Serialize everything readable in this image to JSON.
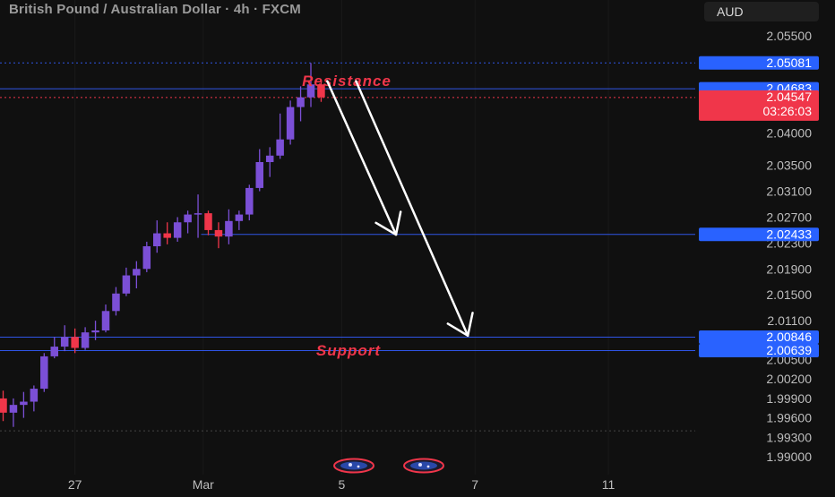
{
  "header": {
    "title": "British Pound / Australian Dollar · 4h · FXCM",
    "currency": "AUD"
  },
  "colors": {
    "background": "#101010",
    "bull": "#7b4fd6",
    "bear": "#f0364a",
    "level_line": "#2f55e6",
    "label_blue": "#2962ff",
    "label_red": "#f0364a",
    "annotation_red": "#f0364a",
    "arrow": "#ffffff",
    "axis_text": "#bdbdbd"
  },
  "chart_data": {
    "type": "candlestick",
    "symbol": "GBPAUD",
    "timeframe": "4h",
    "y_axis": {
      "ticks": [
        "2.05500",
        "2.04000",
        "2.03500",
        "2.03100",
        "2.02700",
        "2.02300",
        "2.01900",
        "2.01500",
        "2.01100",
        "2.00500",
        "2.00200",
        "1.99900",
        "1.99600",
        "1.99300",
        "1.99000"
      ],
      "range": [
        1.989,
        2.057
      ]
    },
    "x_axis": {
      "ticks": [
        {
          "label": "27",
          "bar": 7
        },
        {
          "label": "Mar",
          "bar": 19.5
        },
        {
          "label": "5",
          "bar": 33
        },
        {
          "label": "7",
          "bar": 46
        },
        {
          "label": "11",
          "bar": 59
        }
      ]
    },
    "candles": [
      {
        "o": 1.999,
        "h": 2.0002,
        "l": 1.9955,
        "c": 1.9968
      },
      {
        "o": 1.9968,
        "h": 1.999,
        "l": 1.9946,
        "c": 1.998
      },
      {
        "o": 1.998,
        "h": 2.0,
        "l": 1.996,
        "c": 1.9985
      },
      {
        "o": 1.9985,
        "h": 2.001,
        "l": 1.997,
        "c": 2.0005
      },
      {
        "o": 2.0005,
        "h": 2.006,
        "l": 2.0,
        "c": 2.0055
      },
      {
        "o": 2.0055,
        "h": 2.0085,
        "l": 2.0052,
        "c": 2.007
      },
      {
        "o": 2.007,
        "h": 2.0103,
        "l": 2.0063,
        "c": 2.0085
      },
      {
        "o": 2.0085,
        "h": 2.0098,
        "l": 2.006,
        "c": 2.0068
      },
      {
        "o": 2.0068,
        "h": 2.01,
        "l": 2.0065,
        "c": 2.0092
      },
      {
        "o": 2.0092,
        "h": 2.011,
        "l": 2.008,
        "c": 2.0095
      },
      {
        "o": 2.0095,
        "h": 2.0135,
        "l": 2.0092,
        "c": 2.0125
      },
      {
        "o": 2.0125,
        "h": 2.0162,
        "l": 2.0118,
        "c": 2.0152
      },
      {
        "o": 2.0152,
        "h": 2.0192,
        "l": 2.0148,
        "c": 2.018
      },
      {
        "o": 2.018,
        "h": 2.0202,
        "l": 2.016,
        "c": 2.019
      },
      {
        "o": 2.019,
        "h": 2.0232,
        "l": 2.0185,
        "c": 2.0225
      },
      {
        "o": 2.0225,
        "h": 2.0265,
        "l": 2.0215,
        "c": 2.0245
      },
      {
        "o": 2.0245,
        "h": 2.0262,
        "l": 2.0228,
        "c": 2.0238
      },
      {
        "o": 2.0238,
        "h": 2.027,
        "l": 2.0232,
        "c": 2.0262
      },
      {
        "o": 2.0262,
        "h": 2.028,
        "l": 2.0245,
        "c": 2.0274
      },
      {
        "o": 2.0274,
        "h": 2.0305,
        "l": 2.0238,
        "c": 2.0276
      },
      {
        "o": 2.0276,
        "h": 2.028,
        "l": 2.0242,
        "c": 2.025
      },
      {
        "o": 2.025,
        "h": 2.0262,
        "l": 2.0222,
        "c": 2.024
      },
      {
        "o": 2.024,
        "h": 2.0282,
        "l": 2.0228,
        "c": 2.0264
      },
      {
        "o": 2.0264,
        "h": 2.028,
        "l": 2.025,
        "c": 2.0274
      },
      {
        "o": 2.0274,
        "h": 2.032,
        "l": 2.0265,
        "c": 2.0315
      },
      {
        "o": 2.0315,
        "h": 2.0375,
        "l": 2.031,
        "c": 2.0355
      },
      {
        "o": 2.0355,
        "h": 2.0378,
        "l": 2.0332,
        "c": 2.0365
      },
      {
        "o": 2.0365,
        "h": 2.043,
        "l": 2.036,
        "c": 2.039
      },
      {
        "o": 2.039,
        "h": 2.045,
        "l": 2.0382,
        "c": 2.044
      },
      {
        "o": 2.044,
        "h": 2.0472,
        "l": 2.0418,
        "c": 2.0455
      },
      {
        "o": 2.0455,
        "h": 2.0508,
        "l": 2.044,
        "c": 2.0475
      },
      {
        "o": 2.0475,
        "h": 2.048,
        "l": 2.0448,
        "c": 2.0455
      }
    ],
    "levels": [
      {
        "name": "resistance-high",
        "price": 2.05081,
        "label": "2.05081",
        "style": "dotted",
        "color": "#2962ff"
      },
      {
        "name": "resistance",
        "price": 2.04683,
        "label": "2.04683",
        "style": "solid",
        "color": "#2962ff"
      },
      {
        "name": "current-price",
        "price": 2.04547,
        "label": "2.04547",
        "countdown": "03:26:03",
        "style": "dotted",
        "color": "#f0364a"
      },
      {
        "name": "target-1",
        "price": 2.02433,
        "label": "2.02433",
        "style": "solid",
        "color": "#2962ff",
        "start_bar": 19.3
      },
      {
        "name": "support-high",
        "price": 2.00846,
        "label": "2.00846",
        "style": "solid",
        "color": "#2962ff"
      },
      {
        "name": "support-low",
        "price": 2.00639,
        "label": "2.00639",
        "style": "solid",
        "color": "#2962ff"
      },
      {
        "name": "low-dotted",
        "price": 1.994,
        "style": "dotted",
        "color": "#555555"
      }
    ],
    "annotations": {
      "resistance": "Resistance",
      "support": "Support"
    },
    "arrows": [
      {
        "name": "arrow-target-1",
        "from": {
          "bar": 31.6,
          "price": 2.048
        },
        "to": {
          "bar": 38.3,
          "price": 2.0243
        }
      },
      {
        "name": "arrow-target-2",
        "from": {
          "bar": 34.4,
          "price": 2.048
        },
        "to": {
          "bar": 45.3,
          "price": 2.0087
        }
      }
    ]
  }
}
